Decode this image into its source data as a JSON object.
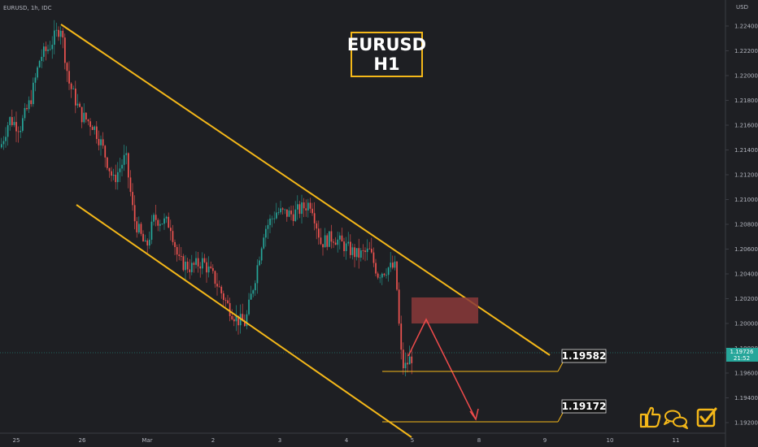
{
  "chart_data": {
    "type": "candlestick",
    "symbol": "EURUSD, 1h, IDC",
    "currency": "USD",
    "title": [
      "EURUSD",
      "H1"
    ],
    "y_axis": {
      "ticks": [
        "1.22400",
        "1.22200",
        "1.22000",
        "1.21800",
        "1.21600",
        "1.21400",
        "1.21200",
        "1.21000",
        "1.20800",
        "1.20600",
        "1.20400",
        "1.20200",
        "1.20000",
        "1.19800",
        "1.19600",
        "1.19400",
        "1.19200"
      ],
      "range": [
        1.1905,
        1.2255
      ]
    },
    "x_axis": {
      "ticks": [
        "25",
        "26",
        "Mar",
        "2",
        "3",
        "4",
        "5",
        "8",
        "9",
        "10",
        "11"
      ]
    },
    "current_price": {
      "value": "1.19726",
      "countdown": "21:52",
      "price": 1.19726
    },
    "levels": [
      {
        "label": "1.19582",
        "price": 1.19582
      },
      {
        "label": "1.19172",
        "price": 1.19172
      }
    ],
    "grid": false,
    "annotations": [
      "descending channel",
      "resistance zone",
      "projected move down"
    ]
  },
  "colors": {
    "background": "#1e1f23",
    "bull": "#26a69a",
    "bear": "#ef5350",
    "channel": "#f5b819",
    "zone": "#8b3a3a",
    "arrow": "#ef4b4b",
    "title_border": "#f5b819",
    "level_label_bg": "#131313"
  },
  "icons": [
    "thumbs-up-icon",
    "chat-icon",
    "checkbox-icon"
  ]
}
